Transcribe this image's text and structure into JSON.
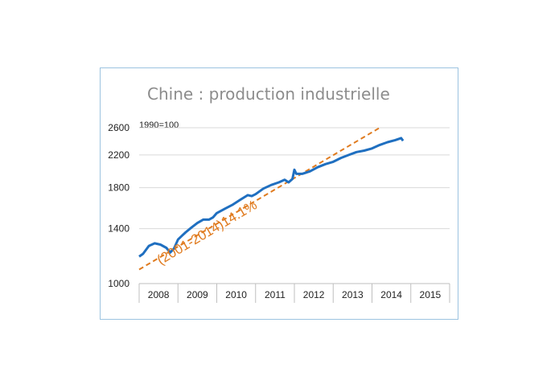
{
  "chart_data": {
    "type": "line",
    "title": "Chine : production industrielle",
    "subtitle": "1990=100",
    "y_ticks": [
      "2600",
      "2200",
      "1800",
      "1400",
      "1000"
    ],
    "y_tick_values": [
      2600,
      2200,
      1800,
      1400,
      1000
    ],
    "ylim": [
      1000,
      2600
    ],
    "y_scale": "log",
    "x_categories": [
      "2008",
      "2009",
      "2010",
      "2011",
      "2012",
      "2013",
      "2014",
      "2015"
    ],
    "xlim": [
      2008.0,
      2016.0
    ],
    "grid": "horizontal",
    "colors": {
      "series": "#1f6fc0",
      "trend": "#e07b1f"
    },
    "series": [
      {
        "x": [
          2008.0,
          2008.1,
          2008.25,
          2008.4,
          2008.55,
          2008.7,
          2008.8,
          2008.9,
          2009.0,
          2009.1,
          2009.2,
          2009.35,
          2009.5,
          2009.65,
          2009.8,
          2009.9,
          2010.0,
          2010.2,
          2010.4,
          2010.6,
          2010.8,
          2010.9,
          2011.0,
          2011.2,
          2011.4,
          2011.6,
          2011.75,
          2011.85,
          2011.95,
          2012.0,
          2012.05,
          2012.2,
          2012.4,
          2012.6,
          2012.8,
          2013.0,
          2013.2,
          2013.4,
          2013.6,
          2013.8,
          2014.0,
          2014.2,
          2014.4,
          2014.6,
          2014.75,
          2014.8
        ],
        "y": [
          1180,
          1200,
          1260,
          1280,
          1270,
          1245,
          1210,
          1240,
          1310,
          1340,
          1370,
          1410,
          1450,
          1480,
          1480,
          1500,
          1540,
          1580,
          1620,
          1670,
          1720,
          1710,
          1730,
          1790,
          1830,
          1860,
          1890,
          1860,
          1900,
          2010,
          1960,
          1960,
          1990,
          2040,
          2080,
          2110,
          2160,
          2200,
          2240,
          2260,
          2290,
          2340,
          2380,
          2410,
          2440,
          2400
        ]
      },
      {
        "name": "(2001-2014)14.1%",
        "x": [
          2008.0,
          2014.2
        ],
        "y": [
          1090,
          2600
        ]
      }
    ]
  }
}
